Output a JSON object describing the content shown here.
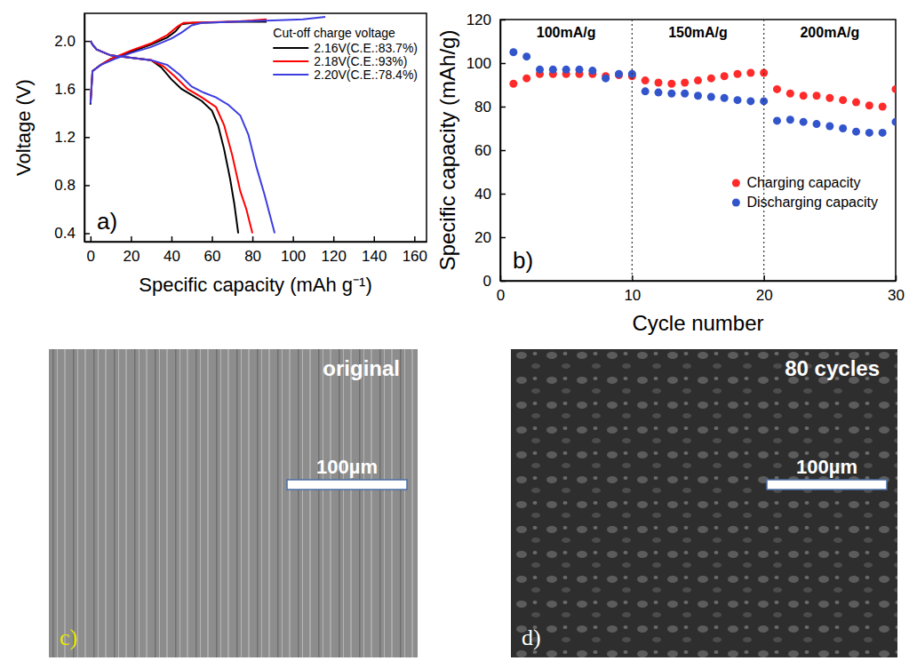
{
  "chart_data": [
    {
      "type": "line",
      "panel_label": "a)",
      "xlabel": "Specific capacity (mAh g⁻¹)",
      "ylabel": "Voltage (V)",
      "legend_title": "Cut-off charge voltage",
      "legend": "upper right",
      "xlim": [
        -3,
        166
      ],
      "ylim": [
        0.33,
        2.23
      ],
      "xticks": [
        0,
        20,
        40,
        60,
        80,
        100,
        120,
        140,
        160
      ],
      "yticks": [
        0.4,
        0.8,
        1.2,
        1.6,
        {
          "value": 2,
          "label": "2.0"
        }
      ],
      "series": [
        {
          "name": "2.16V(C.E.:83.7%)",
          "color": "#000000",
          "x": [
            0,
            1,
            5,
            10,
            20,
            30,
            38,
            42,
            45,
            50,
            60,
            70,
            87,
            null,
            0,
            1,
            3,
            10,
            20,
            30,
            35,
            40,
            45,
            50,
            55,
            60,
            63,
            66,
            69,
            71,
            73
          ],
          "values": [
            1.47,
            1.75,
            1.8,
            1.85,
            1.91,
            1.97,
            2.03,
            2.08,
            2.14,
            2.15,
            2.155,
            2.16,
            2.16,
            null,
            2.0,
            1.97,
            1.93,
            1.88,
            1.86,
            1.84,
            1.78,
            1.68,
            1.6,
            1.55,
            1.5,
            1.42,
            1.3,
            1.1,
            0.85,
            0.65,
            0.4
          ]
        },
        {
          "name": "2.18V(C.E.:93%)",
          "color": "#ff0000",
          "x": [
            0,
            1,
            5,
            10,
            20,
            30,
            38,
            43,
            46,
            55,
            70,
            80,
            87,
            null,
            0,
            1,
            3,
            10,
            20,
            30,
            36,
            42,
            48,
            55,
            62,
            66,
            70,
            74,
            77,
            80
          ],
          "values": [
            1.5,
            1.75,
            1.8,
            1.85,
            1.92,
            1.98,
            2.05,
            2.12,
            2.15,
            2.155,
            2.16,
            2.17,
            2.18,
            null,
            2.0,
            1.97,
            1.93,
            1.88,
            1.86,
            1.84,
            1.79,
            1.7,
            1.6,
            1.53,
            1.45,
            1.3,
            1.05,
            0.75,
            0.6,
            0.4
          ]
        },
        {
          "name": "2.20V(C.E.:78.4%)",
          "color": "#3d3de0",
          "x": [
            0,
            1,
            5,
            12,
            20,
            30,
            40,
            45,
            50,
            55,
            70,
            90,
            105,
            116,
            null,
            0,
            1,
            3,
            10,
            20,
            30,
            38,
            44,
            50,
            56,
            62,
            68,
            74,
            78,
            82,
            86,
            91
          ],
          "values": [
            1.48,
            1.75,
            1.8,
            1.85,
            1.9,
            1.95,
            2.02,
            2.07,
            2.13,
            2.15,
            2.16,
            2.17,
            2.18,
            2.2,
            null,
            2.0,
            1.97,
            1.93,
            1.88,
            1.86,
            1.84,
            1.8,
            1.72,
            1.62,
            1.57,
            1.53,
            1.47,
            1.38,
            1.22,
            0.95,
            0.72,
            0.4
          ]
        }
      ]
    },
    {
      "type": "scatter",
      "panel_label": "b)",
      "xlabel": "Cycle number",
      "ylabel": "Specific capacity (mAh/g)",
      "legend": "center right",
      "xlim": [
        0,
        30
      ],
      "ylim": [
        0,
        120
      ],
      "xticks": [
        0,
        10,
        20,
        30
      ],
      "yticks": [
        0,
        20,
        40,
        60,
        80,
        100,
        120
      ],
      "annotations": [
        {
          "text": "100mA/g",
          "x": [
            0,
            10
          ]
        },
        {
          "text": "150mA/g",
          "x": [
            10,
            20
          ]
        },
        {
          "text": "200mA/g",
          "x": [
            20,
            30
          ]
        }
      ],
      "x": [
        1,
        2,
        3,
        4,
        5,
        6,
        7,
        8,
        9,
        10,
        11,
        12,
        13,
        14,
        15,
        16,
        17,
        18,
        19,
        20,
        21,
        22,
        23,
        24,
        25,
        26,
        27,
        28,
        29,
        30
      ],
      "series": [
        {
          "name": "Charging capacity",
          "color": "#ff2a2a",
          "marker": "circle",
          "values": [
            90.5,
            93,
            95,
            95,
            95,
            95,
            95,
            94,
            94.5,
            94,
            92,
            91,
            90.5,
            91,
            92,
            93,
            94,
            95,
            95.5,
            95.5,
            88,
            86,
            85,
            85,
            84,
            83,
            82,
            80.5,
            80,
            88
          ]
        },
        {
          "name": "Discharging capacity",
          "color": "#3355cc",
          "marker": "circle",
          "values": [
            105,
            103,
            97,
            97,
            97,
            97,
            96.5,
            93,
            95,
            95,
            87,
            86.5,
            86,
            86,
            85,
            84.5,
            84,
            83,
            82.5,
            82.5,
            73.5,
            74,
            73,
            72,
            71,
            70,
            68.5,
            68,
            68,
            73
          ]
        }
      ]
    }
  ],
  "images": [
    {
      "label": "c)",
      "caption": "original",
      "scale_bar": "100µm"
    },
    {
      "label": "d)",
      "caption": "80 cycles",
      "scale_bar": "100µm"
    }
  ]
}
